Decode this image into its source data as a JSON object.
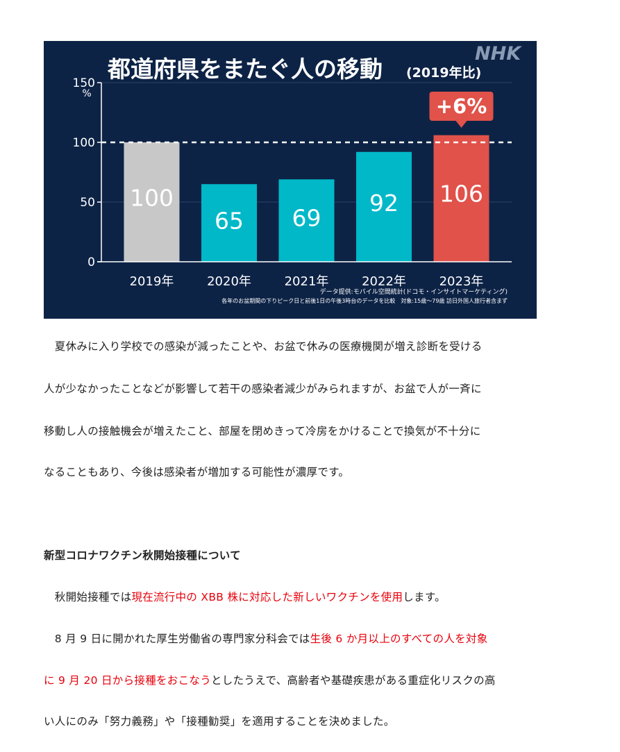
{
  "chart_data": {
    "type": "bar",
    "title": "都道府県をまたぐ人の移動",
    "title_suffix": "(2019年比)",
    "brand": "NHK",
    "y_unit": "%",
    "ylim": [
      0,
      150
    ],
    "yticks": [
      "0",
      "50",
      "100",
      "150"
    ],
    "reference_line": 100,
    "categories": [
      "2019年",
      "2020年",
      "2021年",
      "2022年",
      "2023年"
    ],
    "values": [
      100,
      65,
      69,
      92,
      106
    ],
    "value_labels": [
      "100",
      "65",
      "69",
      "92",
      "106"
    ],
    "bar_colors": [
      "#c8c8c8",
      "#00b8c8",
      "#00b8c8",
      "#00b8c8",
      "#e0524a"
    ],
    "callout": "+6%",
    "source_line_1": "データ提供:モバイル空間統計(ドコモ・インサイトマーケティング)",
    "source_line_2": "各年のお盆期間の下りピーク日と前後1日の午後3時台のデータを比較　対象:15歳〜79歳 訪日外国人旅行者含まず",
    "colors": {
      "background": "#0d2346",
      "gray_bar": "#c8c8c8",
      "teal_bar": "#00b8c8",
      "red_bar": "#e0524a"
    }
  },
  "article": {
    "p1": [
      "　夏休みに入り学校での感染が減ったことや、お盆で休みの医療機関が増え診断を受ける",
      "人が少なかったことなどが影響して若干の感染者減少がみられますが、お盆で人が一斉に",
      "移動し人の接触機会が増えたこと、部屋を閉めきって冷房をかけることで換気が不十分に",
      "なることもあり、今後は感染者が増加する可能性が濃厚です。"
    ],
    "heading": "新型コロナワクチン秋開始接種について",
    "p2": {
      "a": "　秋開始接種では",
      "b": "現在流行中の XBB 株に対応した新しいワクチンを使用",
      "c": "します。"
    },
    "p3": {
      "l1a": "　8 月 9 日に開かれた厚生労働省の専門家分科会では",
      "l1b": "生後 6 か月以上のすべての人を対象",
      "l2a": "に 9 月 20 日から接種をおこなう",
      "l2b": "としたうえで、高齢者や基礎疾患がある重症化リスクの高",
      "l3": "い人にのみ「努力義務」や「接種勧奨」を適用することを決めました。"
    },
    "accent_color": "#e8000b"
  }
}
